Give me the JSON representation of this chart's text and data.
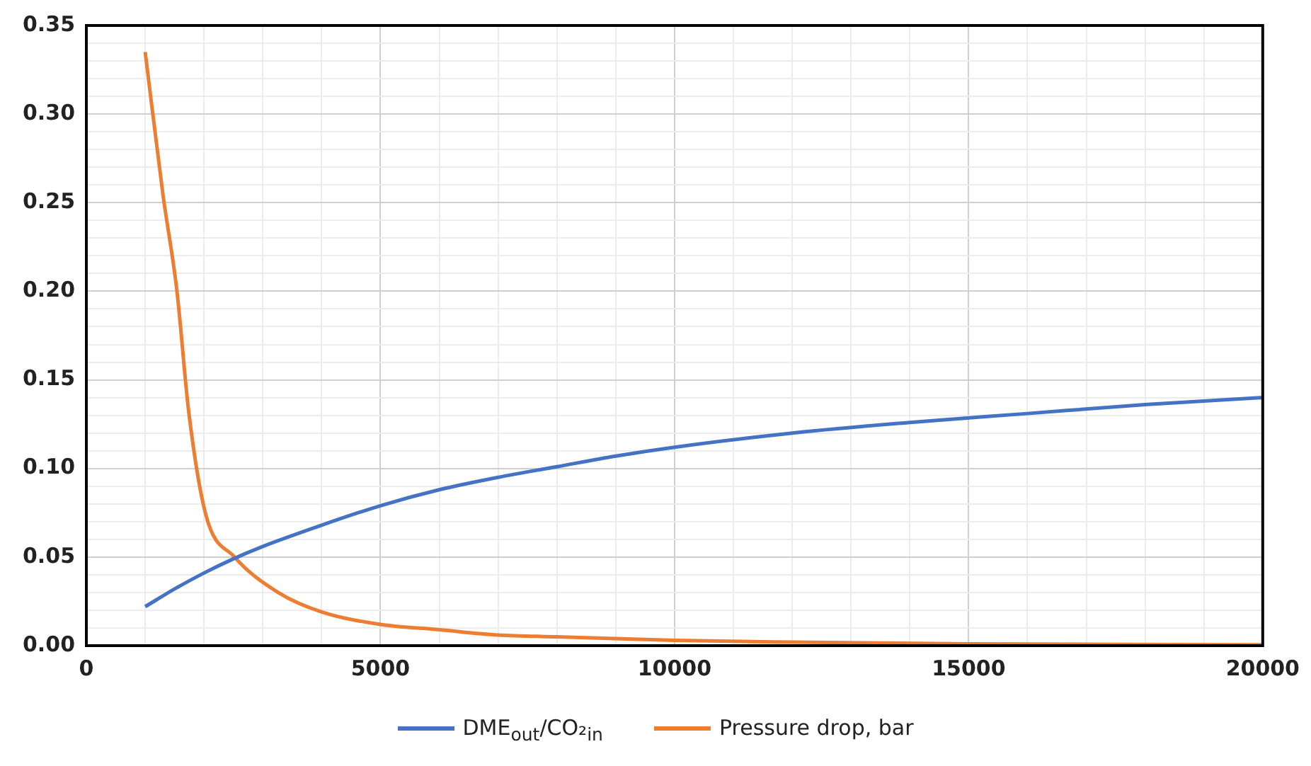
{
  "chart_data": {
    "type": "line",
    "xlim": [
      0,
      20000
    ],
    "ylim": [
      0,
      0.35
    ],
    "xticks": [
      0,
      {
        "value": 1000,
        "label": null
      },
      {
        "value": 2000,
        "label": null
      },
      {
        "value": 3000,
        "label": null
      },
      {
        "value": 4000,
        "label": null
      },
      5000,
      {
        "value": 6000,
        "label": null
      },
      {
        "value": 7000,
        "label": null
      },
      {
        "value": 8000,
        "label": null
      },
      {
        "value": 9000,
        "label": null
      },
      10000,
      {
        "value": 11000,
        "label": null
      },
      {
        "value": 12000,
        "label": null
      },
      {
        "value": 13000,
        "label": null
      },
      {
        "value": 14000,
        "label": null
      },
      15000,
      {
        "value": 16000,
        "label": null
      },
      {
        "value": 17000,
        "label": null
      },
      {
        "value": 18000,
        "label": null
      },
      {
        "value": 19000,
        "label": null
      },
      20000
    ],
    "yticks": [
      {
        "value": 0,
        "label": "0.00"
      },
      {
        "value": 0.01,
        "label": null
      },
      {
        "value": 0.02,
        "label": null
      },
      {
        "value": 0.03,
        "label": null
      },
      {
        "value": 0.04,
        "label": null
      },
      {
        "value": 0.05,
        "label": "0.05"
      },
      {
        "value": 0.06,
        "label": null
      },
      {
        "value": 0.07,
        "label": null
      },
      {
        "value": 0.08,
        "label": null
      },
      {
        "value": 0.09,
        "label": null
      },
      {
        "value": 0.1,
        "label": "0.10"
      },
      {
        "value": 0.11,
        "label": null
      },
      {
        "value": 0.12,
        "label": null
      },
      {
        "value": 0.13,
        "label": null
      },
      {
        "value": 0.14,
        "label": null
      },
      {
        "value": 0.15,
        "label": "0.15"
      },
      {
        "value": 0.16,
        "label": null
      },
      {
        "value": 0.17,
        "label": null
      },
      {
        "value": 0.18,
        "label": null
      },
      {
        "value": 0.19,
        "label": null
      },
      {
        "value": 0.2,
        "label": "0.20"
      },
      {
        "value": 0.21,
        "label": null
      },
      {
        "value": 0.22,
        "label": null
      },
      {
        "value": 0.23,
        "label": null
      },
      {
        "value": 0.24,
        "label": null
      },
      {
        "value": 0.25,
        "label": "0.25"
      },
      {
        "value": 0.26,
        "label": null
      },
      {
        "value": 0.27,
        "label": null
      },
      {
        "value": 0.28,
        "label": null
      },
      {
        "value": 0.29,
        "label": null
      },
      {
        "value": 0.3,
        "label": "0.30"
      },
      {
        "value": 0.31,
        "label": null
      },
      {
        "value": 0.32,
        "label": null
      },
      {
        "value": 0.33,
        "label": null
      },
      {
        "value": 0.34,
        "label": null
      },
      {
        "value": 0.35,
        "label": "0.35"
      }
    ],
    "grid": true,
    "legend": "bottom",
    "marker": "none",
    "line_style": "solid",
    "series": [
      {
        "name": "DME$_{out}$/CO₂$_{in}$",
        "color": "#4472c4",
        "x": [
          1000,
          1500,
          2000,
          2500,
          3000,
          4000,
          5000,
          6000,
          7000,
          8000,
          9000,
          10000,
          12000,
          14000,
          16000,
          18000,
          20000
        ],
        "values": [
          0.022,
          0.032,
          0.041,
          0.049,
          0.056,
          0.068,
          0.079,
          0.088,
          0.095,
          0.101,
          0.107,
          0.112,
          0.12,
          0.126,
          0.131,
          0.136,
          0.14
        ]
      },
      {
        "name": "Pressure drop, bar",
        "color": "#ed7d31",
        "x": [
          1000,
          1300,
          1540,
          1740,
          2030,
          2520,
          3260,
          4000,
          5000,
          6000,
          7000,
          8000,
          10000,
          12000,
          15000,
          20000
        ],
        "values": [
          0.335,
          0.255,
          0.2,
          0.132,
          0.074,
          0.05,
          0.03,
          0.019,
          0.012,
          0.009,
          0.006,
          0.005,
          0.003,
          0.002,
          0.001,
          0.0005
        ]
      }
    ]
  }
}
